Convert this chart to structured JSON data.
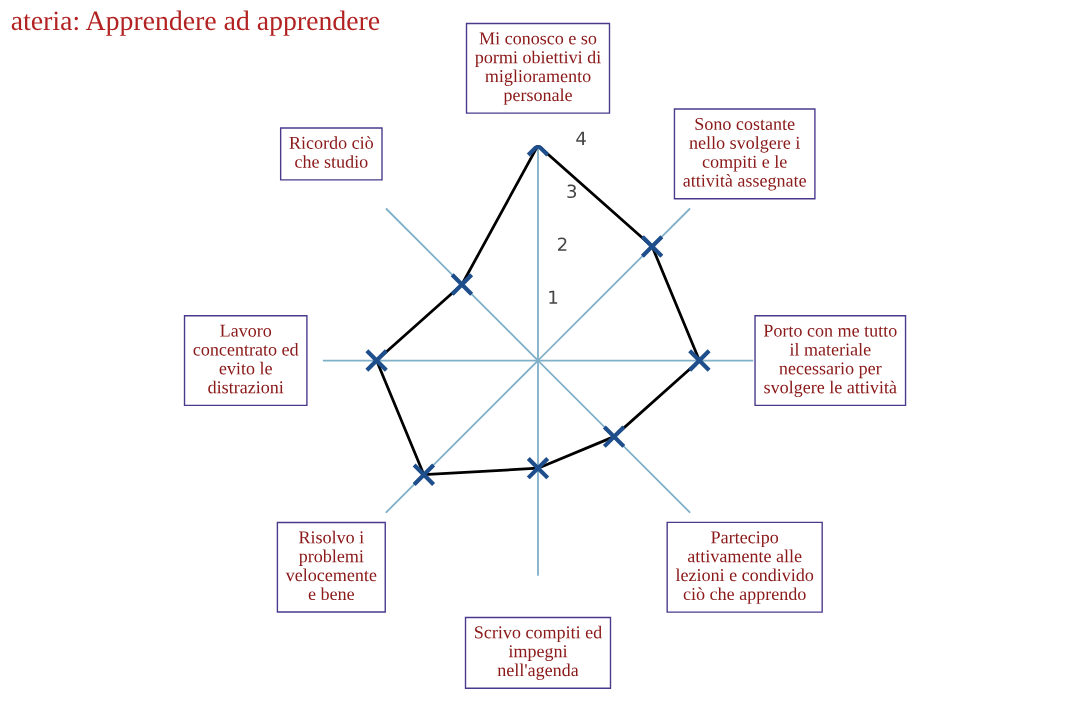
{
  "chart_data": {
    "type": "radar",
    "title": "ateria: Apprendere ad apprendere",
    "categories": [
      "Mi conosco e so\npormi obiettivi di\nmiglioramento\npersonale",
      "Sono costante\nnello svolgere i\ncompiti e le\nattività assegnate",
      "Porto con me tutto\nil materiale\nnecessario per\nsvolgere le attività",
      "Partecipo\nattivamente alle\nlezioni e condivido\nciò che apprendo",
      "Scrivo compiti ed\nimpegni\nnell'agenda",
      "Risolvo i\nproblemi\nvelocemente\ne bene",
      "Lavoro\nconcentrato ed\nevito le\ndistrazioni",
      "Ricordo ciò\nche studio"
    ],
    "series": [
      {
        "color": "#000000",
        "values": [
          4,
          3,
          3,
          2,
          2,
          3,
          3,
          2
        ]
      }
    ],
    "ylim": [
      0,
      4
    ],
    "yticks": [
      1,
      2,
      3,
      4
    ],
    "grid": false,
    "marker": "cross",
    "line_style": "solid"
  }
}
